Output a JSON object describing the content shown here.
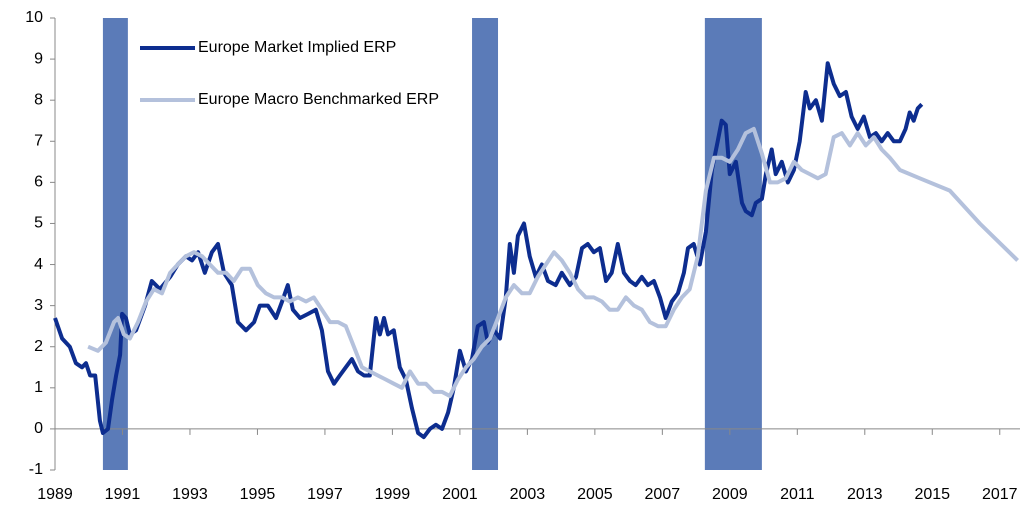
{
  "chart_data": {
    "type": "line",
    "xlim": [
      1989,
      2017.6
    ],
    "xticks": [
      1989,
      1991,
      1993,
      1995,
      1997,
      1999,
      2001,
      2003,
      2005,
      2007,
      2009,
      2011,
      2013,
      2015,
      2017
    ],
    "ylim": [
      -1,
      10
    ],
    "yticks": [
      -1,
      0,
      1,
      2,
      3,
      4,
      5,
      6,
      7,
      8,
      9,
      10
    ],
    "grid": false,
    "legend": "upper left",
    "shaded_periods": [
      [
        1990.42,
        1991.16
      ],
      [
        2001.36,
        2002.13
      ],
      [
        2008.26,
        2009.95
      ]
    ],
    "shade_color": "#5b7bb8",
    "series": [
      {
        "name": "Europe Market Implied ERP",
        "color": "#0d2d8f",
        "x": [
          1989.0,
          1989.21,
          1989.44,
          1989.62,
          1989.8,
          1989.92,
          1990.04,
          1990.19,
          1990.33,
          1990.42,
          1990.57,
          1990.69,
          1990.81,
          1990.93,
          1990.99,
          1991.1,
          1991.22,
          1991.4,
          1991.67,
          1991.87,
          1992.11,
          1992.41,
          1992.64,
          1992.88,
          1993.06,
          1993.24,
          1993.44,
          1993.65,
          1993.83,
          1994.01,
          1994.24,
          1994.42,
          1994.66,
          1994.9,
          1995.07,
          1995.31,
          1995.55,
          1995.73,
          1995.9,
          1996.05,
          1996.26,
          1996.5,
          1996.73,
          1996.91,
          1997.09,
          1997.27,
          1997.44,
          1997.62,
          1997.8,
          1997.98,
          1998.16,
          1998.33,
          1998.51,
          1998.63,
          1998.75,
          1998.87,
          1999.04,
          1999.22,
          1999.4,
          1999.58,
          1999.76,
          1999.93,
          2000.11,
          2000.29,
          2000.47,
          2000.65,
          2000.82,
          2001.0,
          2001.18,
          2001.36,
          2001.53,
          2001.71,
          2001.83,
          2002.01,
          2002.19,
          2002.36,
          2002.48,
          2002.6,
          2002.72,
          2002.9,
          2003.07,
          2003.25,
          2003.43,
          2003.61,
          2003.84,
          2004.02,
          2004.26,
          2004.44,
          2004.62,
          2004.79,
          2004.97,
          2005.15,
          2005.33,
          2005.5,
          2005.68,
          2005.86,
          2006.04,
          2006.21,
          2006.39,
          2006.57,
          2006.75,
          2006.93,
          2007.1,
          2007.28,
          2007.46,
          2007.64,
          2007.76,
          2007.93,
          2008.11,
          2008.29,
          2008.47,
          2008.64,
          2008.76,
          2008.88,
          2009.0,
          2009.18,
          2009.36,
          2009.47,
          2009.65,
          2009.77,
          2009.95,
          2010.07,
          2010.24,
          2010.36,
          2010.54,
          2010.72,
          2010.9,
          2011.07,
          2011.25,
          2011.37,
          2011.55,
          2011.73,
          2011.9,
          2012.08,
          2012.26,
          2012.44,
          2012.61,
          2012.79,
          2012.97,
          2013.15,
          2013.33,
          2013.5,
          2013.68,
          2013.86,
          2014.04,
          2014.21,
          2014.33,
          2014.45,
          2014.57,
          2014.69
        ],
        "values": [
          2.7,
          2.2,
          2.0,
          1.6,
          1.5,
          1.6,
          1.3,
          1.3,
          0.2,
          -0.1,
          0.0,
          0.7,
          1.3,
          1.8,
          2.8,
          2.7,
          2.3,
          2.4,
          3.0,
          3.6,
          3.4,
          3.7,
          4.0,
          4.2,
          4.1,
          4.3,
          3.8,
          4.3,
          4.5,
          3.8,
          3.5,
          2.6,
          2.4,
          2.6,
          3.0,
          3.0,
          2.7,
          3.1,
          3.5,
          2.9,
          2.7,
          2.8,
          2.9,
          2.4,
          1.4,
          1.1,
          1.3,
          1.5,
          1.7,
          1.4,
          1.3,
          1.3,
          2.7,
          2.3,
          2.7,
          2.3,
          2.4,
          1.5,
          1.2,
          0.5,
          -0.1,
          -0.2,
          0.0,
          0.1,
          0.0,
          0.4,
          1.0,
          1.9,
          1.4,
          1.7,
          2.5,
          2.6,
          2.1,
          2.4,
          2.2,
          3.2,
          4.5,
          3.8,
          4.7,
          5.0,
          4.2,
          3.7,
          4.0,
          3.6,
          3.5,
          3.8,
          3.5,
          3.7,
          4.4,
          4.5,
          4.3,
          4.4,
          3.6,
          3.8,
          4.5,
          3.8,
          3.6,
          3.5,
          3.7,
          3.5,
          3.6,
          3.2,
          2.7,
          3.1,
          3.3,
          3.8,
          4.4,
          4.5,
          4.0,
          4.8,
          6.3,
          7.0,
          7.5,
          7.4,
          6.2,
          6.5,
          5.5,
          5.3,
          5.2,
          5.5,
          5.6,
          6.2,
          6.8,
          6.2,
          6.5,
          6.0,
          6.3,
          7.0,
          8.2,
          7.8,
          8.0,
          7.5,
          8.9,
          8.4,
          8.1,
          8.2,
          7.6,
          7.3,
          7.6,
          7.1,
          7.2,
          7.0,
          7.2,
          7.0,
          7.0,
          7.3,
          7.7,
          7.5,
          7.8,
          7.9
        ]
      },
      {
        "name": "Europe Macro Benchmarked ERP",
        "color": "#b4c1dc",
        "x": [
          1989.98,
          1990.27,
          1990.51,
          1990.75,
          1990.87,
          1991.04,
          1991.22,
          1991.46,
          1991.7,
          1991.93,
          1992.17,
          1992.41,
          1992.64,
          1992.88,
          1993.12,
          1993.36,
          1993.59,
          1993.83,
          1994.07,
          1994.3,
          1994.54,
          1994.78,
          1995.01,
          1995.25,
          1995.49,
          1995.73,
          1995.96,
          1996.2,
          1996.44,
          1996.67,
          1996.91,
          1997.15,
          1997.39,
          1997.62,
          1997.86,
          1998.1,
          1998.33,
          1998.57,
          1998.81,
          1999.04,
          1999.28,
          1999.52,
          1999.76,
          1999.99,
          2000.23,
          2000.47,
          2000.7,
          2000.94,
          2001.18,
          2001.41,
          2001.65,
          2001.89,
          2002.13,
          2002.36,
          2002.6,
          2002.84,
          2003.07,
          2003.31,
          2003.55,
          2003.79,
          2004.02,
          2004.26,
          2004.5,
          2004.73,
          2004.97,
          2005.21,
          2005.44,
          2005.68,
          2005.92,
          2006.16,
          2006.39,
          2006.63,
          2006.87,
          2007.1,
          2007.34,
          2007.58,
          2007.81,
          2008.05,
          2008.29,
          2008.53,
          2008.76,
          2009.0,
          2009.24,
          2009.47,
          2009.71,
          2009.95,
          2010.19,
          2010.42,
          2010.66,
          2010.9,
          2011.13,
          2011.37,
          2011.61,
          2011.84,
          2012.08,
          2012.32,
          2012.56,
          2012.79,
          2013.03,
          2013.27,
          2013.5,
          2013.74,
          2014.04,
          2014.63,
          2015.52,
          2016.41,
          2017.53
        ],
        "values": [
          2.0,
          1.9,
          2.1,
          2.6,
          2.7,
          2.3,
          2.2,
          2.6,
          3.1,
          3.4,
          3.3,
          3.8,
          4.0,
          4.2,
          4.3,
          4.2,
          4.0,
          3.8,
          3.8,
          3.6,
          3.9,
          3.9,
          3.5,
          3.3,
          3.2,
          3.2,
          3.1,
          3.2,
          3.1,
          3.2,
          2.9,
          2.6,
          2.6,
          2.5,
          2.0,
          1.5,
          1.4,
          1.3,
          1.2,
          1.1,
          1.0,
          1.4,
          1.1,
          1.1,
          0.9,
          0.9,
          0.8,
          1.2,
          1.5,
          1.7,
          2.0,
          2.2,
          2.7,
          3.2,
          3.5,
          3.3,
          3.3,
          3.7,
          4.0,
          4.3,
          4.1,
          3.8,
          3.4,
          3.2,
          3.2,
          3.1,
          2.9,
          2.9,
          3.2,
          3.0,
          2.9,
          2.6,
          2.5,
          2.5,
          2.9,
          3.2,
          3.4,
          4.2,
          5.8,
          6.6,
          6.6,
          6.5,
          6.8,
          7.2,
          7.3,
          6.7,
          6.0,
          6.0,
          6.1,
          6.5,
          6.3,
          6.2,
          6.1,
          6.2,
          7.1,
          7.2,
          6.9,
          7.2,
          6.9,
          7.1,
          6.8,
          6.6,
          6.3,
          6.1,
          5.8,
          5.0,
          4.1
        ]
      }
    ]
  }
}
